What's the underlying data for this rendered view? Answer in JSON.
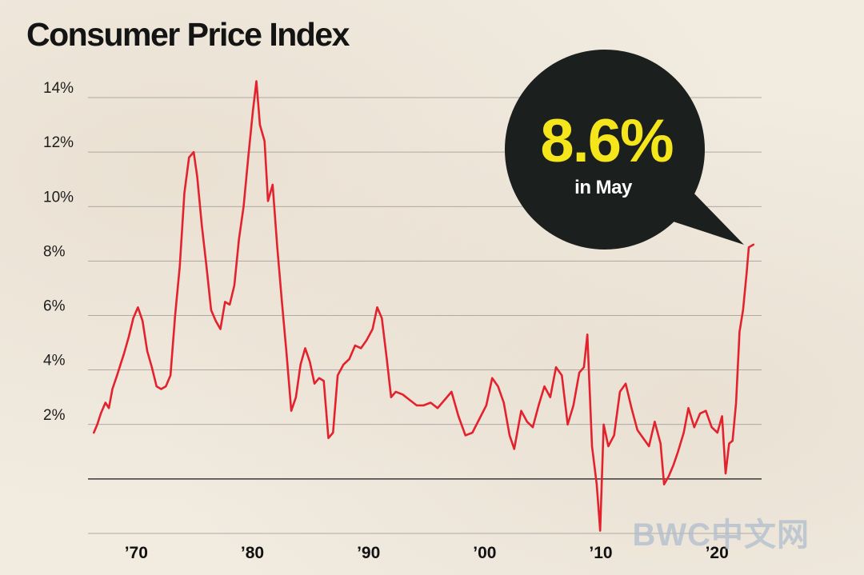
{
  "title": "Consumer Price Index",
  "watermark": "BWC中文网",
  "colors": {
    "line": "#e3222e",
    "bubble": "#1b1f1e",
    "value": "#f5e61c",
    "grid": "#9a9590",
    "background": "#f1ebe0"
  },
  "callout": {
    "value": "8.6%",
    "label": "in May"
  },
  "chart_data": {
    "type": "line",
    "title": "Consumer Price Index",
    "xlabel": "",
    "ylabel": "",
    "xlim": [
      1965.5,
      2023.5
    ],
    "ylim": [
      -2,
      14
    ],
    "grid": true,
    "y_ticks": [
      {
        "value": 14,
        "label": "14%"
      },
      {
        "value": 12,
        "label": "12%"
      },
      {
        "value": 10,
        "label": "10%"
      },
      {
        "value": 8,
        "label": "8%"
      },
      {
        "value": 6,
        "label": "6%"
      },
      {
        "value": 4,
        "label": "4%"
      },
      {
        "value": 2,
        "label": "2%"
      }
    ],
    "x_ticks": [
      {
        "value": 1970,
        "label": "’70"
      },
      {
        "value": 1980,
        "label": "’80"
      },
      {
        "value": 1990,
        "label": "’90"
      },
      {
        "value": 2000,
        "label": "’00"
      },
      {
        "value": 2010,
        "label": "’10"
      },
      {
        "value": 2020,
        "label": "’20"
      }
    ],
    "series": [
      {
        "x": [
          1966.0,
          1966.3,
          1966.6,
          1967.0,
          1967.3,
          1967.6,
          1968.0,
          1968.3,
          1968.6,
          1969.0,
          1969.4,
          1969.8,
          1970.2,
          1970.6,
          1971.0,
          1971.4,
          1971.8,
          1972.2,
          1972.6,
          1973.0,
          1973.4,
          1973.8,
          1974.2,
          1974.6,
          1974.9,
          1975.3,
          1975.7,
          1976.1,
          1976.5,
          1976.9,
          1977.3,
          1977.7,
          1978.1,
          1978.5,
          1978.9,
          1979.3,
          1979.7,
          1980.0,
          1980.3,
          1980.7,
          1981.0,
          1981.4,
          1981.8,
          1982.2,
          1982.6,
          1983.0,
          1983.4,
          1983.8,
          1984.2,
          1984.6,
          1985.0,
          1985.4,
          1985.8,
          1986.2,
          1986.6,
          1987.0,
          1987.5,
          1988.0,
          1988.5,
          1989.0,
          1989.5,
          1990.0,
          1990.4,
          1990.8,
          1991.2,
          1991.6,
          1992.0,
          1992.6,
          1993.2,
          1993.8,
          1994.4,
          1995.0,
          1995.6,
          1996.2,
          1996.8,
          1997.4,
          1998.0,
          1998.6,
          1999.2,
          1999.8,
          2000.3,
          2000.8,
          2001.3,
          2001.8,
          2002.2,
          2002.8,
          2003.3,
          2003.8,
          2004.3,
          2004.8,
          2005.3,
          2005.8,
          2006.3,
          2006.8,
          2007.3,
          2007.8,
          2008.2,
          2008.5,
          2008.9,
          2009.3,
          2009.6,
          2009.9,
          2010.3,
          2010.8,
          2011.3,
          2011.8,
          2012.3,
          2012.8,
          2013.3,
          2013.8,
          2014.3,
          2014.8,
          2015.1,
          2015.5,
          2015.9,
          2016.3,
          2016.8,
          2017.2,
          2017.7,
          2018.2,
          2018.7,
          2019.2,
          2019.7,
          2020.1,
          2020.4,
          2020.7,
          2021.0,
          2021.3,
          2021.6,
          2021.9,
          2022.2,
          2022.4,
          2022.8
        ],
        "y": [
          1.7,
          2.0,
          2.4,
          2.8,
          2.6,
          3.3,
          3.8,
          4.2,
          4.6,
          5.2,
          5.9,
          6.3,
          5.8,
          4.7,
          4.1,
          3.4,
          3.3,
          3.4,
          3.8,
          6.0,
          7.8,
          10.5,
          11.8,
          12.0,
          11.1,
          9.3,
          7.8,
          6.2,
          5.8,
          5.5,
          6.5,
          6.4,
          7.1,
          8.8,
          10.0,
          11.8,
          13.5,
          14.6,
          13.0,
          12.4,
          10.2,
          10.8,
          8.5,
          6.5,
          4.6,
          2.5,
          3.0,
          4.2,
          4.8,
          4.3,
          3.5,
          3.7,
          3.6,
          1.5,
          1.7,
          3.8,
          4.2,
          4.4,
          4.9,
          4.8,
          5.1,
          5.5,
          6.3,
          5.9,
          4.5,
          3.0,
          3.2,
          3.1,
          2.9,
          2.7,
          2.7,
          2.8,
          2.6,
          2.9,
          3.2,
          2.3,
          1.6,
          1.7,
          2.2,
          2.7,
          3.7,
          3.4,
          2.8,
          1.6,
          1.1,
          2.5,
          2.1,
          1.9,
          2.7,
          3.4,
          3.0,
          4.1,
          3.8,
          2.0,
          2.7,
          3.9,
          4.1,
          5.3,
          1.2,
          -0.2,
          -1.9,
          2.0,
          1.2,
          1.6,
          3.2,
          3.5,
          2.6,
          1.8,
          1.5,
          1.2,
          2.1,
          1.3,
          -0.2,
          0.1,
          0.5,
          1.0,
          1.7,
          2.6,
          1.9,
          2.4,
          2.5,
          1.9,
          1.7,
          2.3,
          0.2,
          1.3,
          1.4,
          2.8,
          5.4,
          6.2,
          7.5,
          8.5,
          8.6
        ]
      }
    ]
  }
}
